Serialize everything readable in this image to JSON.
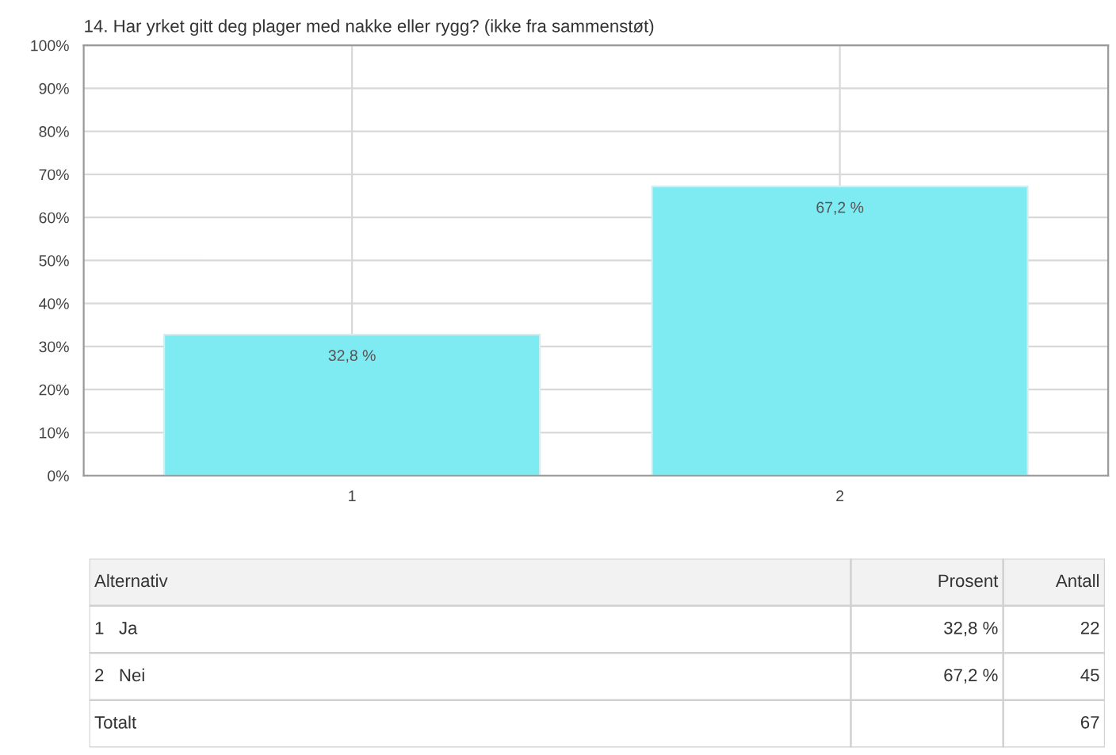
{
  "chart_data": [
    {
      "type": "bar",
      "title": "14. Har yrket gitt deg plager med nakke eller rygg? (ikke fra sammenstøt)",
      "categories": [
        "1",
        "2"
      ],
      "values": [
        32.8,
        67.2
      ],
      "color": "#7eeaf2",
      "value_labels": [
        "32,8 %",
        "67,2 %"
      ],
      "ylim": [
        0,
        100
      ],
      "yticks": [
        {
          "value": 0,
          "label": "0%"
        },
        {
          "value": 10,
          "label": "10%"
        },
        {
          "value": 20,
          "label": "20%"
        },
        {
          "value": 30,
          "label": "30%"
        },
        {
          "value": 40,
          "label": "40%"
        },
        {
          "value": 50,
          "label": "50%"
        },
        {
          "value": 60,
          "label": "60%"
        },
        {
          "value": 70,
          "label": "70%"
        },
        {
          "value": 80,
          "label": "80%"
        },
        {
          "value": 90,
          "label": "90%"
        },
        {
          "value": 100,
          "label": "100%"
        }
      ],
      "grid": true
    },
    {
      "type": "other",
      "annotations": [
        "Alternativ",
        "Prosent",
        "Antall",
        "1   Ja",
        "32,8 %",
        "22",
        "2   Nei",
        "67,2 %",
        "45",
        "Totalt",
        "67"
      ]
    }
  ]
}
